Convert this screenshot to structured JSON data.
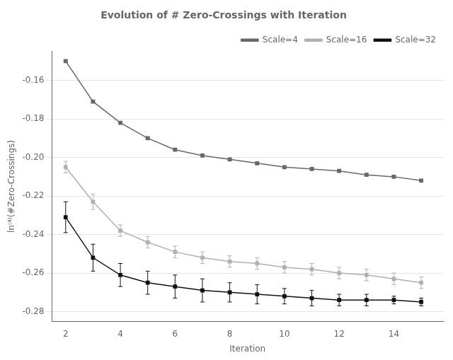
{
  "chart_data": {
    "type": "line",
    "title": "Evolution of # Zero-Crossings with Iteration",
    "xlabel": "Iteration",
    "ylabel": "ln⁽⁴⁾(#Zero-Crossings)",
    "x": [
      2,
      3,
      4,
      5,
      6,
      7,
      8,
      9,
      10,
      11,
      12,
      13,
      14,
      15
    ],
    "xlim": [
      1.5,
      15.8
    ],
    "xticks": [
      2,
      4,
      6,
      8,
      10,
      12,
      14
    ],
    "ylim": [
      -0.285,
      -0.145
    ],
    "yticks": [
      -0.28,
      -0.26,
      -0.24,
      -0.22,
      {
        "value": -0.2,
        "label": "-0.20"
      },
      -0.18,
      -0.16
    ],
    "grid": true,
    "legend": "upper right",
    "marker": "square",
    "series": [
      {
        "name": "Scale=4",
        "color": "#686868",
        "values": [
          -0.15,
          -0.171,
          -0.182,
          -0.19,
          -0.196,
          -0.199,
          -0.201,
          -0.203,
          -0.205,
          -0.206,
          -0.207,
          -0.209,
          -0.21,
          -0.212
        ],
        "yerr": [
          0.0005,
          0.0005,
          0.0005,
          0.0005,
          0.0005,
          0.0005,
          0.0005,
          0.0005,
          0.0005,
          0.0005,
          0.0005,
          0.0005,
          0.0005,
          0.0005
        ]
      },
      {
        "name": "Scale=16",
        "color": "#b0b0b0",
        "values": [
          -0.205,
          -0.223,
          -0.238,
          -0.244,
          -0.249,
          -0.252,
          -0.254,
          -0.255,
          -0.257,
          -0.258,
          -0.26,
          -0.261,
          -0.263,
          -0.265
        ],
        "yerr": [
          0.003,
          0.004,
          0.003,
          0.003,
          0.003,
          0.003,
          0.003,
          0.003,
          0.003,
          0.003,
          0.003,
          0.003,
          0.003,
          0.003
        ]
      },
      {
        "name": "Scale=32",
        "color": "#111111",
        "values": [
          -0.231,
          -0.252,
          -0.261,
          -0.265,
          -0.267,
          -0.269,
          -0.27,
          -0.271,
          -0.272,
          -0.273,
          -0.274,
          -0.274,
          -0.274,
          -0.275
        ],
        "yerr": [
          0.008,
          0.007,
          0.006,
          0.006,
          0.006,
          0.006,
          0.005,
          0.005,
          0.004,
          0.004,
          0.003,
          0.003,
          0.002,
          0.002
        ]
      }
    ]
  }
}
